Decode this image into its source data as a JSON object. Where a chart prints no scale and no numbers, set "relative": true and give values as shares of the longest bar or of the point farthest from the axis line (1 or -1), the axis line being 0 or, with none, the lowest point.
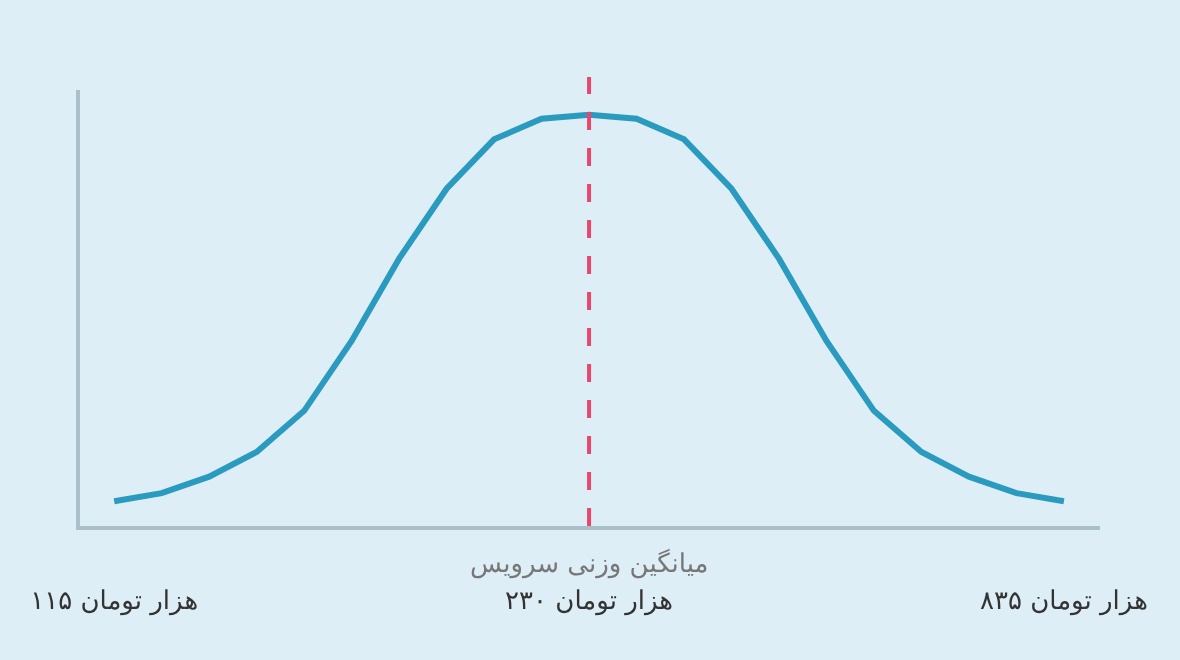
{
  "chart_data": {
    "type": "line",
    "relative": true,
    "categories": [
      "۱۱۵ هزار تومان",
      null,
      null,
      null,
      null,
      null,
      null,
      null,
      null,
      null,
      "۲۳۰ هزار تومان",
      null,
      null,
      null,
      null,
      null,
      null,
      null,
      null,
      null,
      "۸۳۵ هزار تومان"
    ],
    "series": [
      {
        "color": "#2a9bbf",
        "values": [
          0.06,
          0.08,
          0.12,
          0.18,
          0.28,
          0.45,
          0.65,
          0.82,
          0.94,
          0.99,
          1.0,
          0.99,
          0.94,
          0.82,
          0.65,
          0.45,
          0.28,
          0.18,
          0.12,
          0.08,
          0.06
        ]
      }
    ],
    "ref_lines": [
      {
        "axis": "x",
        "value": "۲۳۰ هزار تومان",
        "label": "میانگین وزنی سرویس",
        "color": "#e8476b",
        "line_style": "dashed"
      }
    ],
    "grid": false,
    "legend": false,
    "marker": "none",
    "line_style": "solid"
  }
}
